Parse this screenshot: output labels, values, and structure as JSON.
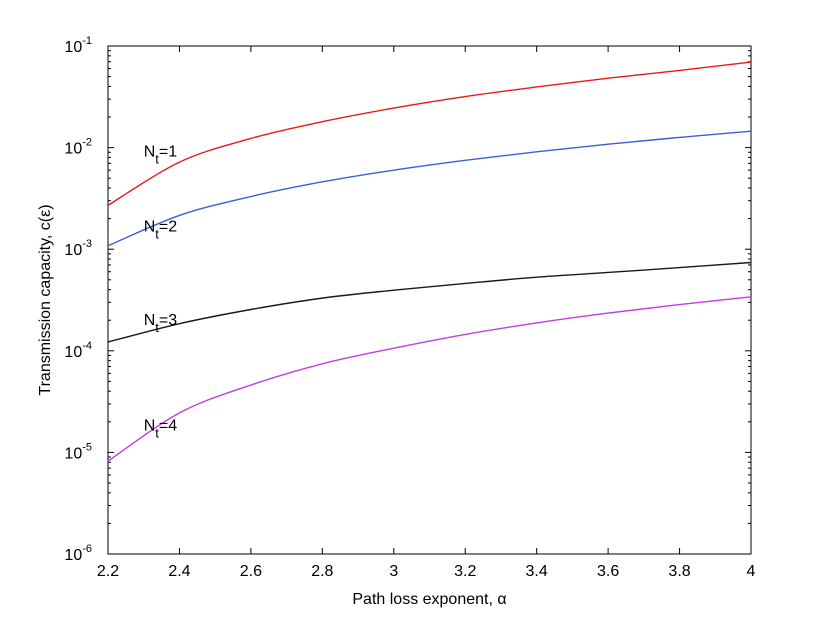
{
  "chart_data": {
    "type": "line",
    "title": "",
    "xlabel": "Path loss exponent, α",
    "ylabel": "Transmission capacity, c(ε)",
    "xlim": [
      2.2,
      4
    ],
    "ylim": [
      1e-06,
      0.1
    ],
    "yscale": "log",
    "grid": false,
    "legend": "none",
    "xticks": [
      2.2,
      2.4,
      2.6,
      2.8,
      3,
      3.2,
      3.4,
      3.6,
      3.8,
      4
    ],
    "xtick_labels": [
      "2.2",
      "2.4",
      "2.6",
      "2.8",
      "3",
      "3.2",
      "3.4",
      "3.6",
      "3.8",
      "4"
    ],
    "yticks": [
      {
        "value": 1e-06,
        "base": "10",
        "exp": "-6"
      },
      {
        "value": 1e-05,
        "base": "10",
        "exp": "-5"
      },
      {
        "value": 0.0001,
        "base": "10",
        "exp": "-4"
      },
      {
        "value": 0.001,
        "base": "10",
        "exp": "-3"
      },
      {
        "value": 0.01,
        "base": "10",
        "exp": "-2"
      },
      {
        "value": 0.1,
        "base": "10",
        "exp": "-1"
      }
    ],
    "x": [
      2.2,
      2.4,
      2.6,
      2.8,
      3.0,
      3.2,
      3.4,
      3.6,
      3.8,
      4.0
    ],
    "series": [
      {
        "label_main": "N",
        "label_sub": "t",
        "label_tail": "=1",
        "label_at": [
          2.3,
          0.0082
        ],
        "color": "#e8191b",
        "values": [
          0.0027,
          0.0072,
          0.0123,
          0.018,
          0.0245,
          0.0318,
          0.0395,
          0.0482,
          0.0575,
          0.0695
        ]
      },
      {
        "label_main": "N",
        "label_sub": "t",
        "label_tail": "=2",
        "label_at": [
          2.3,
          0.0015
        ],
        "color": "#3b5fd9",
        "values": [
          0.00108,
          0.00215,
          0.0033,
          0.0046,
          0.006,
          0.0075,
          0.0091,
          0.0108,
          0.0126,
          0.0145
        ]
      },
      {
        "label_main": "N",
        "label_sub": "t",
        "label_tail": "=3",
        "label_at": [
          2.3,
          0.00018
        ],
        "color": "#1a1a1a",
        "values": [
          0.000122,
          0.000185,
          0.000255,
          0.00033,
          0.000395,
          0.00046,
          0.00053,
          0.00059,
          0.00066,
          0.00074
        ]
      },
      {
        "label_main": "N",
        "label_sub": "t",
        "label_tail": "=4",
        "label_at": [
          2.3,
          1.65e-05
        ],
        "color": "#c13fe0",
        "values": [
          8.2e-06,
          2.45e-05,
          4.6e-05,
          7.45e-05,
          0.000106,
          0.000145,
          0.000188,
          0.000235,
          0.000285,
          0.00034
        ]
      }
    ]
  }
}
